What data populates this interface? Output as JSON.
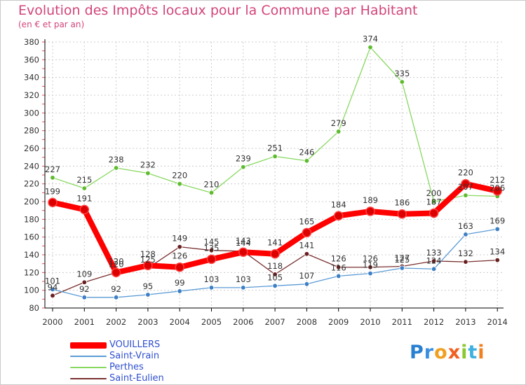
{
  "title": "Evolution des Impôts locaux pour la Commune par Habitant",
  "subtitle": "(en € et par an)",
  "colors": {
    "title": "#d2447a",
    "axis": "#000000",
    "grid": "#cccccc",
    "tick_text": "#333333",
    "legend_text": "#3050d0"
  },
  "chart_data": {
    "type": "line",
    "title": "Evolution des Impôts locaux pour la Commune par Habitant",
    "ylabel": "(en € et par an)",
    "xlabel": "",
    "categories": [
      "2000",
      "2001",
      "2002",
      "2003",
      "2004",
      "2005",
      "2006",
      "2007",
      "2008",
      "2009",
      "2010",
      "2011",
      "2012",
      "2013",
      "2014"
    ],
    "ylim": [
      80,
      380
    ],
    "yticks": [
      80,
      100,
      120,
      140,
      160,
      180,
      200,
      220,
      240,
      260,
      280,
      300,
      320,
      340,
      360,
      380
    ],
    "grid": true,
    "legend_position": "bottom-left",
    "series": [
      {
        "name": "VOUILLERS",
        "color": "#ff0000",
        "marker": "#dd0000",
        "width": 8,
        "values": [
          199,
          191,
          120,
          128,
          126,
          135,
          143,
          141,
          165,
          184,
          189,
          186,
          187,
          220,
          212
        ],
        "labels": [
          "199",
          "191",
          "120",
          "128",
          "126",
          "135",
          "143",
          "141",
          "165",
          "184",
          "189",
          "186",
          "187",
          "220",
          "212"
        ]
      },
      {
        "name": "Saint-Vrain",
        "color": "#5b9bd5",
        "marker": "#3d7fc4",
        "width": 1.3,
        "values": [
          101,
          92,
          92,
          95,
          99,
          103,
          103,
          105,
          107,
          116,
          119,
          125,
          124,
          163,
          169
        ],
        "labels": [
          "101",
          "92",
          "92",
          "95",
          "99",
          "103",
          "103",
          "105",
          "107",
          "116",
          "119",
          "125",
          "124",
          "163",
          "169"
        ]
      },
      {
        "name": "Perthes",
        "color": "#88d860",
        "marker": "#5fbb2e",
        "width": 1.3,
        "values": [
          227,
          215,
          238,
          232,
          220,
          210,
          239,
          251,
          246,
          279,
          374,
          335,
          200,
          207,
          206
        ],
        "labels": [
          "227",
          "215",
          "238",
          "232",
          "220",
          "210",
          "239",
          "251",
          "246",
          "279",
          "374",
          "335",
          "200",
          "207",
          "206"
        ]
      },
      {
        "name": "Saint-Eulien",
        "color": "#7a3030",
        "marker": "#6a1f1f",
        "width": 1.3,
        "values": [
          94,
          109,
          120,
          125,
          149,
          145,
          144,
          118,
          141,
          126,
          126,
          127,
          133,
          132,
          134
        ],
        "labels": [
          "94",
          "109",
          "120",
          "125",
          "149",
          "145",
          "144",
          "118",
          "141",
          "126",
          "126",
          "127",
          "133",
          "132",
          "134"
        ]
      }
    ]
  },
  "legend": {
    "items": [
      {
        "label": "VOUILLERS",
        "color": "#ff0000"
      },
      {
        "label": "Saint-Vrain",
        "color": "#5b9bd5"
      },
      {
        "label": "Perthes",
        "color": "#88d860"
      },
      {
        "label": "Saint-Eulien",
        "color": "#7a3030"
      }
    ]
  },
  "logo": {
    "letters": [
      "P",
      "r",
      "o",
      "x",
      "i",
      "t",
      "i"
    ],
    "letter_colors": [
      "#2a80d0",
      "#3a8fe0",
      "#f0a020",
      "#f06020",
      "#8cc830",
      "#40b0e0",
      "#f08020"
    ]
  }
}
